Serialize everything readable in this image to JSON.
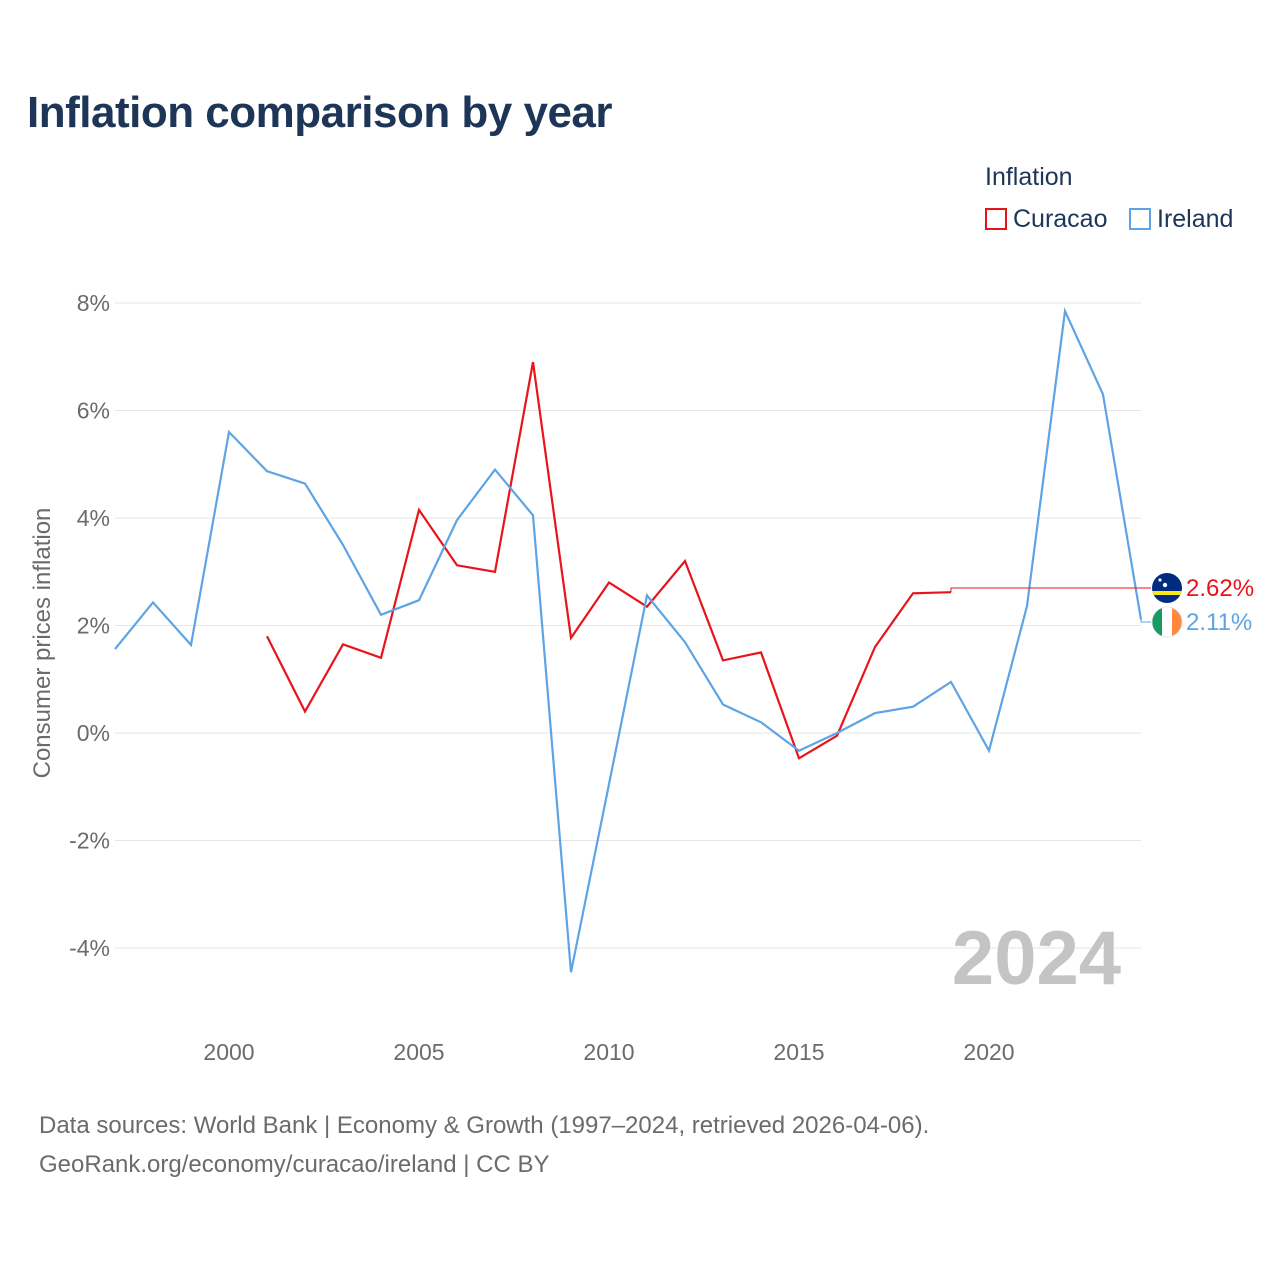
{
  "title": "Inflation comparison by year",
  "legend": {
    "title": "Inflation",
    "items": [
      {
        "label": "Curacao",
        "color": "#e8141b"
      },
      {
        "label": "Ireland",
        "color": "#5ea4e4"
      }
    ]
  },
  "footer": {
    "line1": "Data sources: World Bank | Economy & Growth (1997–2024, retrieved 2026-04-06).",
    "line2": "GeoRank.org/economy/curacao/ireland | CC BY"
  },
  "chart_data": {
    "type": "line",
    "title": "Inflation comparison by year",
    "xlabel": "",
    "ylabel": "Consumer prices inflation",
    "xlim": [
      1997,
      2024
    ],
    "ylim": [
      -5,
      8
    ],
    "x_ticks": [
      2000,
      2005,
      2010,
      2015,
      2020
    ],
    "y_ticks": [
      -4,
      -2,
      0,
      2,
      4,
      6,
      8
    ],
    "y_tick_labels": [
      "-4%",
      "-2%",
      "0%",
      "2%",
      "4%",
      "6%",
      "8%"
    ],
    "grid": true,
    "year_watermark": "2024",
    "series": [
      {
        "name": "Curacao",
        "color": "#e8141b",
        "x": [
          2001,
          2002,
          2003,
          2004,
          2005,
          2006,
          2007,
          2008,
          2009,
          2010,
          2011,
          2012,
          2013,
          2014,
          2015,
          2016,
          2017,
          2018,
          2019
        ],
        "values": [
          1.8,
          0.4,
          1.65,
          1.4,
          4.15,
          3.12,
          3.0,
          6.9,
          1.77,
          2.8,
          2.35,
          3.2,
          1.35,
          1.5,
          -0.47,
          -0.05,
          1.6,
          2.6,
          2.62
        ],
        "end_label": "2.62%",
        "flag": "curacao"
      },
      {
        "name": "Ireland",
        "color": "#5ea4e4",
        "x": [
          1997,
          1998,
          1999,
          2000,
          2001,
          2002,
          2003,
          2004,
          2005,
          2006,
          2007,
          2008,
          2009,
          2010,
          2011,
          2012,
          2013,
          2014,
          2015,
          2016,
          2017,
          2018,
          2019,
          2020,
          2021,
          2022,
          2023,
          2024
        ],
        "values": [
          1.56,
          2.43,
          1.64,
          5.6,
          4.87,
          4.64,
          3.5,
          2.2,
          2.47,
          3.96,
          4.9,
          4.05,
          -4.45,
          -0.95,
          2.56,
          1.69,
          0.53,
          0.2,
          -0.33,
          0.0,
          0.37,
          0.49,
          0.95,
          -0.33,
          2.36,
          7.85,
          6.3,
          2.11
        ],
        "end_label": "2.11%",
        "flag": "ireland"
      }
    ]
  }
}
